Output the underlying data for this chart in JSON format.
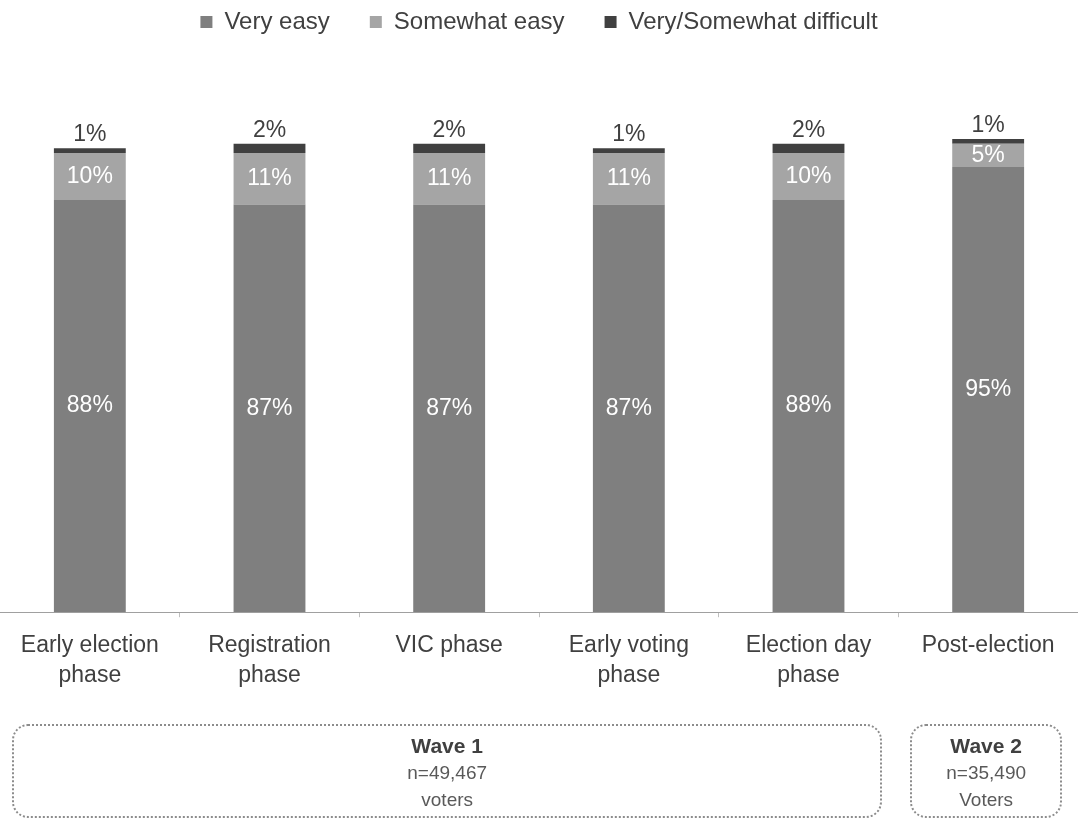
{
  "chart_data": {
    "type": "bar",
    "stacked": true,
    "legend": "top",
    "categories": [
      "Early election phase",
      "Registration phase",
      "VIC phase",
      "Early voting phase",
      "Election day phase",
      "Post-election"
    ],
    "series": [
      {
        "name": "Very easy",
        "color": "#7f7f7f",
        "values": [
          88,
          87,
          87,
          87,
          88,
          95
        ],
        "value_labels": [
          "88%",
          "87%",
          "87%",
          "87%",
          "88%",
          "95%"
        ]
      },
      {
        "name": "Somewhat easy",
        "color": "#a5a5a5",
        "values": [
          10,
          11,
          11,
          11,
          10,
          5
        ],
        "value_labels": [
          "10%",
          "11%",
          "11%",
          "11%",
          "10%",
          "5%"
        ]
      },
      {
        "name": "Very/Somewhat difficult",
        "color": "#404040",
        "values": [
          1,
          2,
          2,
          1,
          2,
          1
        ],
        "value_labels": [
          "1%",
          "2%",
          "2%",
          "1%",
          "2%",
          "1%"
        ]
      }
    ],
    "annotations": [
      "Wave 1\nn=49,467\nvoters",
      "Wave 2\nn=35,490\nVoters"
    ]
  }
}
